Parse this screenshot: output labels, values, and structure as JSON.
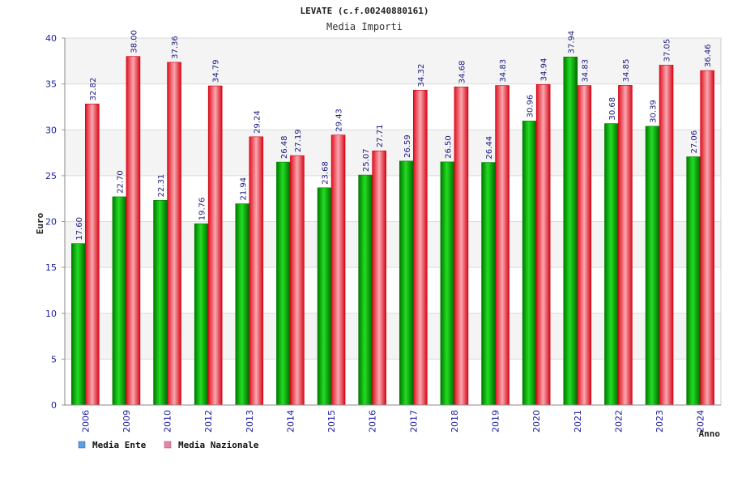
{
  "chart_data": {
    "type": "bar",
    "title": "LEVATE (c.f.00240880161)",
    "subtitle": "Media Importi",
    "xlabel": "Anno",
    "ylabel": "Euro",
    "ylim": [
      0,
      40
    ],
    "yticks": [
      "0",
      "5",
      "10",
      "15",
      "20",
      "25",
      "30",
      "35",
      "40"
    ],
    "categories": [
      "2006",
      "2009",
      "2010",
      "2012",
      "2013",
      "2014",
      "2015",
      "2016",
      "2017",
      "2018",
      "2019",
      "2020",
      "2021",
      "2022",
      "2023",
      "2024"
    ],
    "series": [
      {
        "name": "Media Ente",
        "labels": [
          "17.60",
          "22.70",
          "22.31",
          "19.76",
          "21.94",
          "26.48",
          "23.68",
          "25.07",
          "26.59",
          "26.50",
          "26.44",
          "30.96",
          "37.94",
          "30.68",
          "30.39",
          "27.06"
        ],
        "values": [
          17.6,
          22.7,
          22.31,
          19.76,
          21.94,
          26.48,
          23.68,
          25.07,
          26.59,
          26.5,
          26.44,
          30.96,
          37.94,
          30.68,
          30.39,
          27.06
        ]
      },
      {
        "name": "Media Nazionale",
        "labels": [
          "32.82",
          "38.00",
          "37.36",
          "34.79",
          "29.24",
          "27.19",
          "29.43",
          "27.71",
          "34.32",
          "34.68",
          "34.83",
          "34.94",
          "34.83",
          "34.85",
          "37.05",
          "36.46"
        ],
        "values": [
          32.82,
          38.0,
          37.36,
          34.79,
          29.24,
          27.19,
          29.43,
          27.71,
          34.32,
          34.68,
          34.83,
          34.94,
          34.83,
          34.85,
          37.05,
          36.46
        ]
      }
    ],
    "legend_position": "bottom-left",
    "grid": true,
    "colors": {
      "series1": "#00b000",
      "series2": "#ee2233",
      "legend1": "#5aa0e6",
      "legend2": "#e088a8",
      "band": "#f4f4f4",
      "grid": "#dcdcdc"
    }
  }
}
